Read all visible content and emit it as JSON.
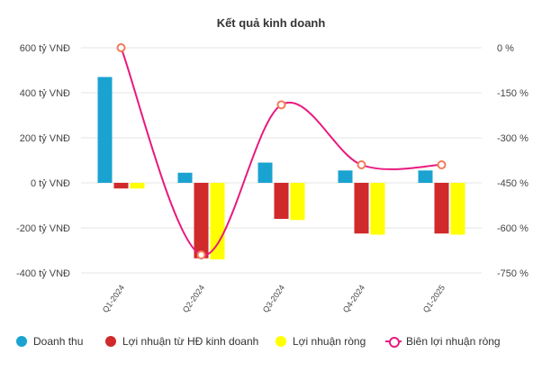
{
  "chart_data": {
    "type": "bar",
    "title": "Kết quả kinh doanh",
    "categories": [
      "Q1-2024",
      "Q2-2024",
      "Q3-2024",
      "Q4-2024",
      "Q1-2025"
    ],
    "left_axis": {
      "ticks": [
        600,
        400,
        200,
        0,
        -200,
        -400
      ],
      "tick_labels": [
        "600 tỷ VNĐ",
        "400 tỷ VNĐ",
        "200 tỷ VNĐ",
        "0 tỷ VNĐ",
        "-200 tỷ VNĐ",
        "-400 tỷ VNĐ"
      ],
      "range": [
        -400,
        600
      ]
    },
    "right_axis": {
      "ticks": [
        0,
        -150,
        -300,
        -450,
        -600,
        -750
      ],
      "tick_labels": [
        "0 %",
        "-150 %",
        "-300 %",
        "-450 %",
        "-600 %",
        "-750 %"
      ],
      "range": [
        -750,
        0
      ]
    },
    "series": [
      {
        "name": "Doanh thu",
        "type": "bar",
        "axis": "left",
        "color": "#1aa3d1",
        "values": [
          470,
          45,
          90,
          55,
          55
        ]
      },
      {
        "name": "Lợi nhuận từ HĐ kinh doanh",
        "type": "bar",
        "axis": "left",
        "color": "#d02a2a",
        "values": [
          -25,
          -335,
          -160,
          -225,
          -225
        ]
      },
      {
        "name": "Lợi nhuận ròng",
        "type": "bar",
        "axis": "left",
        "color": "#ffff00",
        "values": [
          -25,
          -340,
          -165,
          -230,
          -230
        ]
      },
      {
        "name": "Biên lợi nhuận ròng",
        "type": "line",
        "axis": "right",
        "color": "#e8197e",
        "marker_color": "#f07c5a",
        "values": [
          0,
          -690,
          -190,
          -390,
          -390
        ]
      }
    ],
    "grid": true,
    "legend_position": "bottom"
  }
}
